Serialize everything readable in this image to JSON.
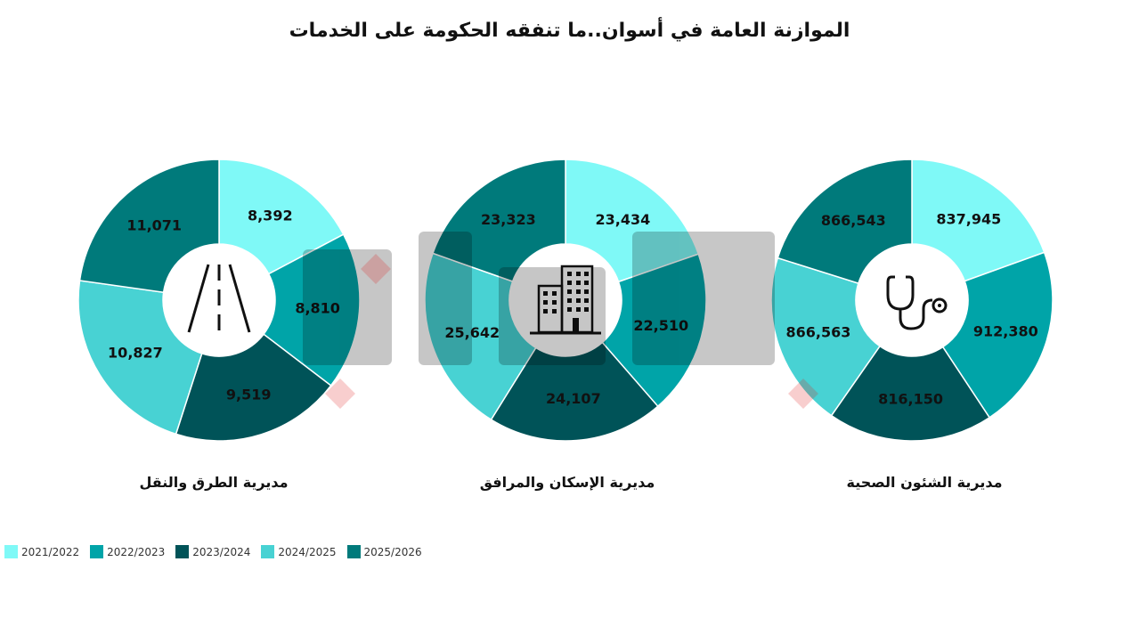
{
  "title": "الموازنة العامة في أسوان..ما تنفقه الحكومة على الخدمات",
  "colors": [
    "#7ff9f7",
    "#00a4a8",
    "#005358",
    "#48d2d3",
    "#007a7b"
  ],
  "chart_data": [
    {
      "type": "pie",
      "name": "مديرية الطرق والنقل",
      "icon": "road-icon",
      "categories": [
        "2021/2022",
        "2022/2023",
        "2023/2024",
        "2024/2025",
        "2025/2026"
      ],
      "values": [
        8392,
        8810,
        9519,
        10827,
        11071
      ],
      "value_labels": [
        "8,392",
        "8,810",
        "9,519",
        "10,827",
        "11,071"
      ]
    },
    {
      "type": "pie",
      "name": "مديرية الإسكان والمرافق",
      "icon": "buildings-icon",
      "categories": [
        "2021/2022",
        "2022/2023",
        "2023/2024",
        "2024/2025",
        "2025/2026"
      ],
      "values": [
        23434,
        22510,
        24107,
        25642,
        23323
      ],
      "value_labels": [
        "23,434",
        "22,510",
        "24,107",
        "25,642",
        "23,323"
      ]
    },
    {
      "type": "pie",
      "name": "مديرية الشئون الصحية",
      "icon": "stethoscope-icon",
      "categories": [
        "2021/2022",
        "2022/2023",
        "2023/2024",
        "2024/2025",
        "2025/2026"
      ],
      "values": [
        837945,
        912380,
        816150,
        866563,
        866543
      ],
      "value_labels": [
        "837,945",
        "912,380",
        "816,150",
        "866,563",
        "866,543"
      ]
    }
  ],
  "legend": [
    "2021/2022",
    "2022/2023",
    "2023/2024",
    "2024/2025",
    "2025/2026"
  ]
}
